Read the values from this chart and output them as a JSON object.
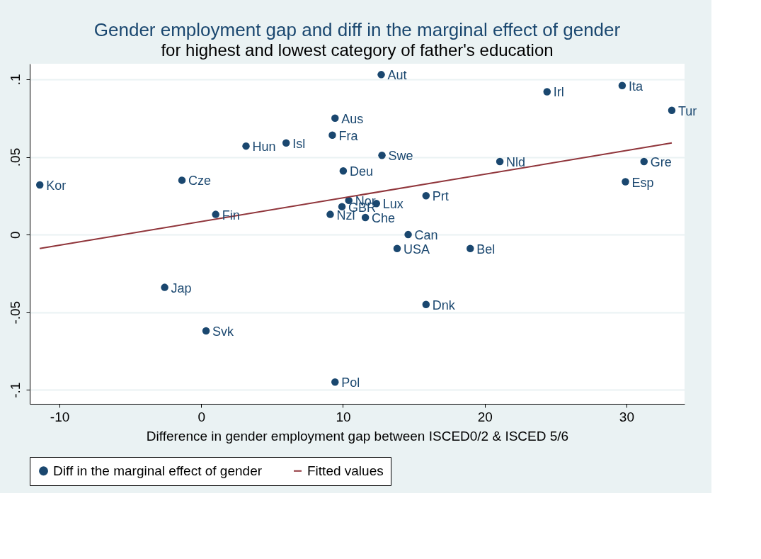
{
  "chart_data": {
    "type": "scatter",
    "title": "Gender employment gap and diff in the marginal effect of gender",
    "subtitle": "for highest and lowest category of father's education",
    "xlabel": "Difference in gender employment gap between ISCED0/2 & ISCED 5/6",
    "xlim": [
      -12.1,
      34.1
    ],
    "xticks": [
      -10,
      0,
      10,
      20,
      30
    ],
    "ylim": [
      -0.109,
      0.11
    ],
    "yticks": [
      {
        "value": -0.1,
        "label": "-.1"
      },
      {
        "value": -0.05,
        "label": "-.05"
      },
      {
        "value": 0,
        "label": "0"
      },
      {
        "value": 0.05,
        "label": ".05"
      },
      {
        "value": 0.1,
        "label": ".1"
      }
    ],
    "grid": "y",
    "legend": "bottom",
    "marker": "circle",
    "series": [
      {
        "name": "Diff in the marginal effect of gender",
        "color": "#1a476f",
        "x": [
          12.7,
          24.4,
          29.7,
          33.2,
          9.44,
          9.25,
          3.16,
          5.99,
          12.75,
          21.07,
          31.24,
          10.02,
          -11.39,
          -1.36,
          29.93,
          15.86,
          10.41,
          12.36,
          9.93,
          1.02,
          9.1,
          11.58,
          14.6,
          13.82,
          18.98,
          -2.58,
          15.86,
          0.34,
          9.44
        ],
        "values": [
          0.103,
          0.092,
          0.096,
          0.08,
          0.075,
          0.064,
          0.057,
          0.059,
          0.051,
          0.047,
          0.047,
          0.041,
          0.032,
          0.035,
          0.034,
          0.025,
          0.022,
          0.02,
          0.018,
          0.013,
          0.013,
          0.011,
          0.0,
          -0.009,
          -0.009,
          -0.034,
          -0.045,
          -0.062,
          -0.095
        ]
      },
      {
        "name": "Fitted values",
        "type": "line",
        "line_style": "solid",
        "marker": "none",
        "color": "#90353b",
        "x": [
          -11.4,
          33.2
        ],
        "values": [
          -0.009,
          0.059
        ]
      }
    ],
    "annotations": [
      {
        "text": "Aut",
        "x": 12.7,
        "y": 0.103
      },
      {
        "text": "Irl",
        "x": 24.4,
        "y": 0.092
      },
      {
        "text": "Ita",
        "x": 29.7,
        "y": 0.096
      },
      {
        "text": "Tur",
        "x": 33.2,
        "y": 0.08
      },
      {
        "text": "Aus",
        "x": 9.44,
        "y": 0.075
      },
      {
        "text": "Fra",
        "x": 9.25,
        "y": 0.064
      },
      {
        "text": "Hun",
        "x": 3.16,
        "y": 0.057
      },
      {
        "text": "Isl",
        "x": 5.99,
        "y": 0.059
      },
      {
        "text": "Swe",
        "x": 12.75,
        "y": 0.051
      },
      {
        "text": "Nld",
        "x": 21.07,
        "y": 0.047
      },
      {
        "text": "Gre",
        "x": 31.24,
        "y": 0.047
      },
      {
        "text": "Deu",
        "x": 10.02,
        "y": 0.041
      },
      {
        "text": "Kor",
        "x": -11.39,
        "y": 0.032
      },
      {
        "text": "Cze",
        "x": -1.36,
        "y": 0.035
      },
      {
        "text": "Esp",
        "x": 29.93,
        "y": 0.034
      },
      {
        "text": "Prt",
        "x": 15.86,
        "y": 0.025
      },
      {
        "text": "Nor",
        "x": 10.41,
        "y": 0.022
      },
      {
        "text": "Lux",
        "x": 12.36,
        "y": 0.02
      },
      {
        "text": "GBR",
        "x": 9.93,
        "y": 0.018
      },
      {
        "text": "Fin",
        "x": 1.02,
        "y": 0.013
      },
      {
        "text": "Nzl",
        "x": 9.1,
        "y": 0.013
      },
      {
        "text": "Che",
        "x": 11.58,
        "y": 0.011
      },
      {
        "text": "Can",
        "x": 14.6,
        "y": 0.0
      },
      {
        "text": "USA",
        "x": 13.82,
        "y": -0.009
      },
      {
        "text": "Bel",
        "x": 18.98,
        "y": -0.009
      },
      {
        "text": "Jap",
        "x": -2.58,
        "y": -0.034
      },
      {
        "text": "Dnk",
        "x": 15.86,
        "y": -0.045
      },
      {
        "text": "Svk",
        "x": 0.34,
        "y": -0.062
      },
      {
        "text": "Pol",
        "x": 9.44,
        "y": -0.095
      }
    ]
  }
}
